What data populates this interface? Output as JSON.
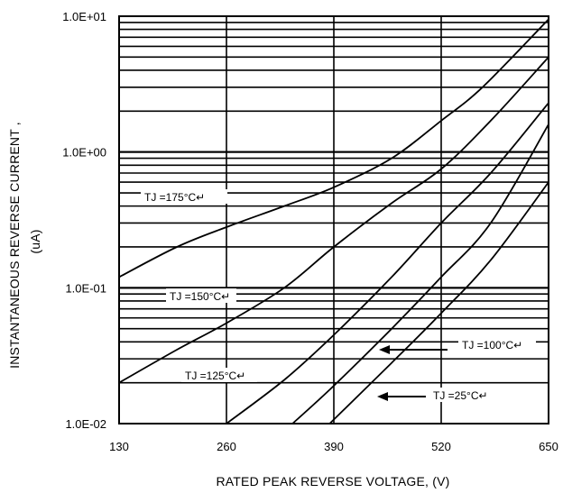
{
  "chart_data": {
    "type": "line",
    "title": "",
    "xlabel": "RATED PEAK REVERSE VOLTAGE, (V)",
    "ylabel_line1": "INSTANTANEOUS REVERSE CURRENT ,",
    "ylabel_line2": "(uA)",
    "xlim": [
      130,
      650
    ],
    "ylim": [
      0.01,
      10
    ],
    "yscale": "log",
    "x_ticks": [
      "130",
      "260",
      "390",
      "520",
      "650"
    ],
    "y_ticks": [
      "1.0E-02",
      "1.0E-01",
      "1.0E+00",
      "1.0E+01"
    ],
    "grid": true,
    "legend": "inline labels",
    "series": [
      {
        "name": "TJ =175°C",
        "label_text": "TJ =175°C↵",
        "x": [
          130,
          200,
          260,
          330,
          390,
          460,
          520,
          570,
          650
        ],
        "y": [
          0.12,
          0.2,
          0.28,
          0.4,
          0.55,
          0.9,
          1.7,
          3.0,
          9.5
        ]
      },
      {
        "name": "TJ =150°C",
        "label_text": "TJ =150°C↵",
        "x": [
          130,
          200,
          260,
          330,
          390,
          460,
          520,
          580,
          650
        ],
        "y": [
          0.02,
          0.035,
          0.055,
          0.1,
          0.2,
          0.42,
          0.75,
          1.7,
          5.0
        ]
      },
      {
        "name": "TJ =125°C",
        "label_text": "TJ =125°C↵",
        "x": [
          260,
          330,
          390,
          460,
          520,
          580,
          650
        ],
        "y": [
          0.01,
          0.021,
          0.045,
          0.12,
          0.3,
          0.7,
          2.3
        ]
      },
      {
        "name": "TJ =100°C",
        "label_text": "TJ =100°C↵",
        "x": [
          340,
          390,
          460,
          520,
          580,
          650
        ],
        "y": [
          0.01,
          0.019,
          0.05,
          0.12,
          0.3,
          1.6
        ]
      },
      {
        "name": "TJ =25°C",
        "label_text": "TJ =25°C↵",
        "x": [
          385,
          460,
          520,
          580,
          650
        ],
        "y": [
          0.01,
          0.028,
          0.065,
          0.16,
          0.6
        ]
      }
    ]
  }
}
